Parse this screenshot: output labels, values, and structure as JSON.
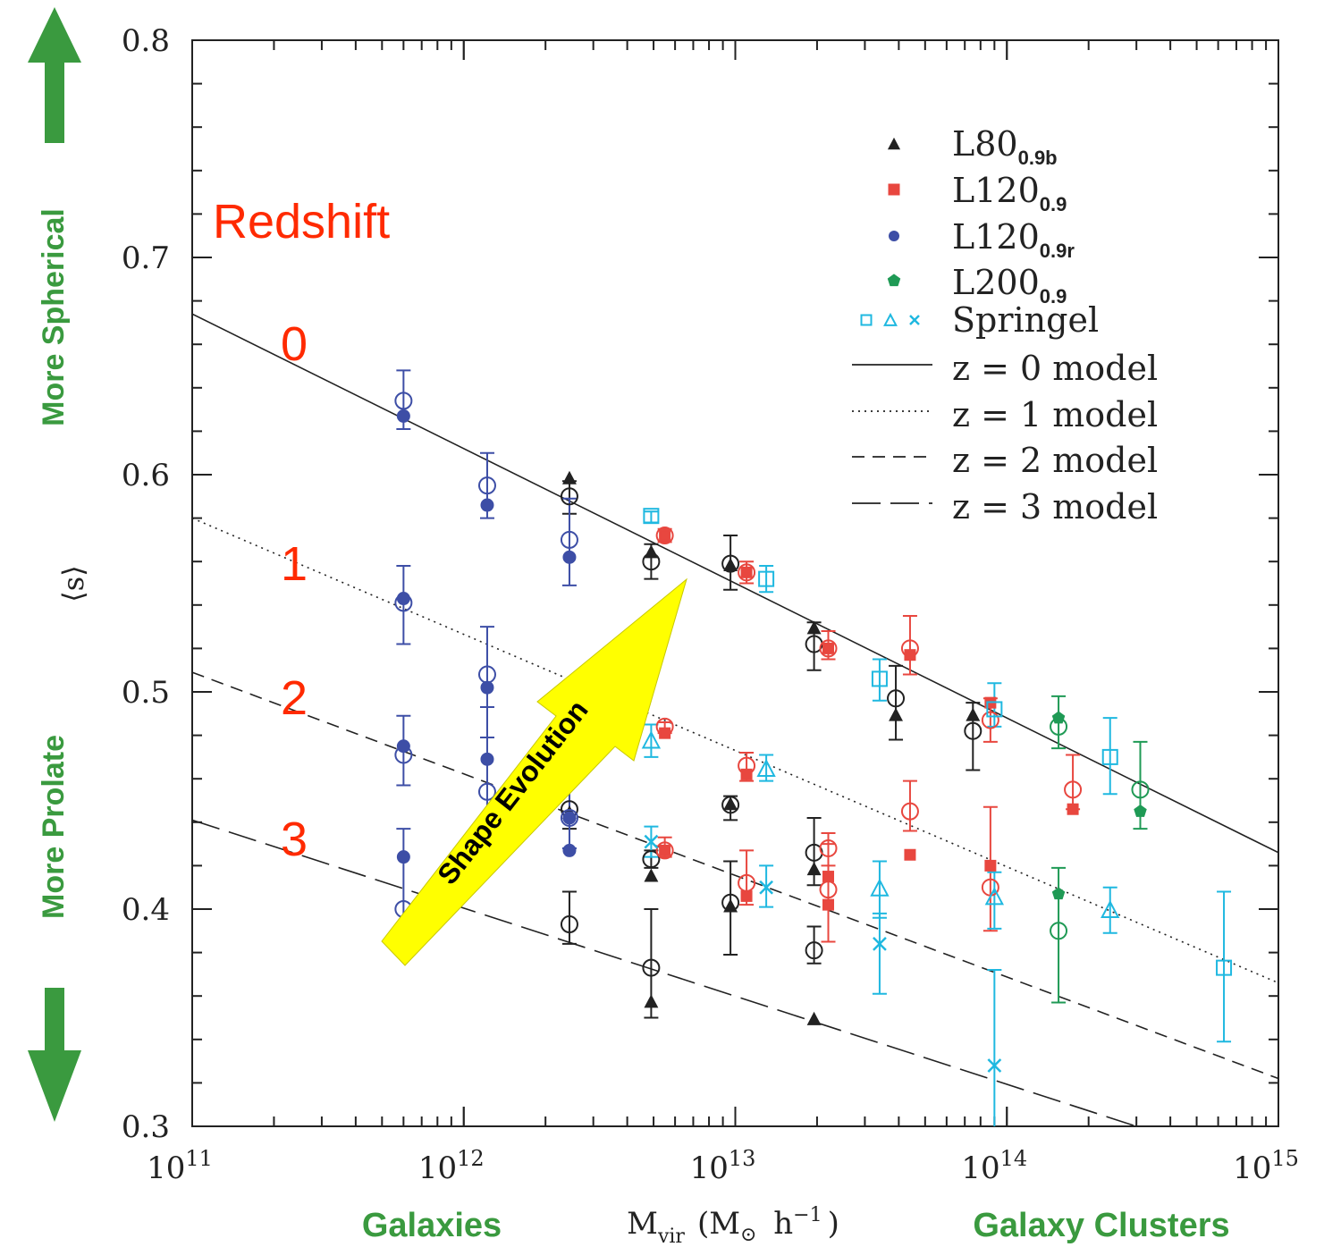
{
  "chart_data": {
    "type": "scatter",
    "xscale": "log",
    "xlim": [
      100000000000.0,
      1000000000000000.0
    ],
    "ylim": [
      0.3,
      0.8
    ],
    "x_ticks": [
      {
        "base": "10",
        "exp": "11"
      },
      {
        "base": "10",
        "exp": "12"
      },
      {
        "base": "10",
        "exp": "13"
      },
      {
        "base": "10",
        "exp": "14"
      },
      {
        "base": "10",
        "exp": "15"
      }
    ],
    "y_ticks": [
      "0.3",
      "0.4",
      "0.5",
      "0.6",
      "0.7",
      "0.8"
    ],
    "ylabel": "⟨s⟩",
    "xlabel": {
      "m": "M",
      "m_sub": "vir",
      "paren": "(M",
      "sun": "⊙",
      "h": " h",
      "h_exp": "−1",
      "close": ")"
    },
    "left_annotations": {
      "top": "More Spherical",
      "bottom": "More Prolate"
    },
    "bottom_annotations": {
      "left": "Galaxies",
      "right": "Galaxy Clusters"
    },
    "redshift_title": "Redshift",
    "redshift_labels": [
      "0",
      "1",
      "2",
      "3"
    ],
    "arrow_label": "Shape Evolution",
    "colors": {
      "L80": "#222222",
      "L120": "#e8473f",
      "L120r": "#3d4ea6",
      "L200": "#1f9a55",
      "Springel": "#1fb8e0",
      "annotation_green": "#3a9a3f",
      "redshift_red": "#ff2a00",
      "arrow_yellow": "#ffff00"
    },
    "legend": [
      {
        "name": "L80",
        "sub": "0.9b",
        "marker": "triangle",
        "color": "#222222"
      },
      {
        "name": "L120",
        "sub": "0.9",
        "marker": "square",
        "color": "#e8473f"
      },
      {
        "name": "L120",
        "sub": "0.9r",
        "marker": "circle",
        "color": "#3d4ea6"
      },
      {
        "name": "L200",
        "sub": "0.9",
        "marker": "pentagon",
        "color": "#1f9a55"
      },
      {
        "name": "Springel",
        "sub": "",
        "marker": "springel",
        "color": "#1fb8e0"
      },
      {
        "name": "z  =  0  model",
        "sub": "",
        "marker": "line",
        "dash": "none"
      },
      {
        "name": "z  =  1  model",
        "sub": "",
        "marker": "line",
        "dash": "2,5"
      },
      {
        "name": "z  =  2  model",
        "sub": "",
        "marker": "line",
        "dash": "14,9"
      },
      {
        "name": "z  =  3  model",
        "sub": "",
        "marker": "line",
        "dash": "32,11"
      }
    ],
    "models": [
      {
        "name": "z = 0 model",
        "x": [
          100000000000.0,
          1000000000000000.0
        ],
        "y": [
          0.674,
          0.426
        ],
        "dash": "none"
      },
      {
        "name": "z = 1 model",
        "x": [
          100000000000.0,
          1000000000000000.0
        ],
        "y": [
          0.58,
          0.366
        ],
        "dash": "2,5"
      },
      {
        "name": "z = 2 model",
        "x": [
          100000000000.0,
          1000000000000000.0
        ],
        "y": [
          0.509,
          0.322
        ],
        "dash": "14,9"
      },
      {
        "name": "z = 3 model",
        "x": [
          100000000000.0,
          300000000000000.0
        ],
        "y": [
          0.441,
          0.3
        ],
        "dash": "32,11"
      }
    ],
    "series": [
      {
        "name": "L80 0.9b",
        "color": "#222222",
        "filled": [
          [
            2450000000000.0,
            0.598
          ],
          [
            4900000000000.0,
            0.564
          ],
          [
            9600000000000.0,
            0.558
          ],
          [
            19500000000000.0,
            0.529
          ],
          [
            39000000000000.0,
            0.489
          ],
          [
            75000000000000.0,
            0.489
          ],
          [
            2450000000000.0,
            0.444
          ],
          [
            9600000000000.0,
            0.448
          ],
          [
            19500000000000.0,
            0.418
          ],
          [
            4900000000000.0,
            0.415
          ],
          [
            9600000000000.0,
            0.401
          ],
          [
            4900000000000.0,
            0.357
          ],
          [
            19500000000000.0,
            0.349
          ]
        ],
        "open": [
          [
            2450000000000.0,
            0.59,
            0.582,
            0.597
          ],
          [
            4900000000000.0,
            0.56,
            0.552,
            0.568
          ],
          [
            9600000000000.0,
            0.559,
            0.547,
            0.572
          ],
          [
            19500000000000.0,
            0.522,
            0.51,
            0.532
          ],
          [
            39000000000000.0,
            0.497,
            0.478,
            0.512
          ],
          [
            75000000000000.0,
            0.482,
            0.464,
            0.495
          ],
          [
            2450000000000.0,
            0.446,
            0.437,
            0.457
          ],
          [
            9600000000000.0,
            0.448,
            0.441,
            0.452
          ],
          [
            19500000000000.0,
            0.426,
            0.411,
            0.442
          ],
          [
            4900000000000.0,
            0.423,
            0.419,
            0.427
          ],
          [
            2450000000000.0,
            0.393,
            0.384,
            0.408
          ],
          [
            9600000000000.0,
            0.403,
            0.379,
            0.422
          ],
          [
            19500000000000.0,
            0.381,
            0.375,
            0.392
          ],
          [
            4900000000000.0,
            0.373,
            0.35,
            0.4
          ]
        ]
      },
      {
        "name": "L120 0.9",
        "color": "#e8473f",
        "filled": [
          [
            5500000000000.0,
            0.572
          ],
          [
            11000000000000.0,
            0.555
          ],
          [
            22000000000000.0,
            0.52
          ],
          [
            44000000000000.0,
            0.517
          ],
          [
            87000000000000.0,
            0.495
          ],
          [
            5500000000000.0,
            0.481
          ],
          [
            11000000000000.0,
            0.462
          ],
          [
            175000000000000.0,
            0.446
          ],
          [
            5500000000000.0,
            0.427
          ],
          [
            22000000000000.0,
            0.415
          ],
          [
            44000000000000.0,
            0.425
          ],
          [
            87000000000000.0,
            0.42
          ],
          [
            11000000000000.0,
            0.406
          ],
          [
            22000000000000.0,
            0.402
          ]
        ],
        "open": [
          [
            5500000000000.0,
            0.572,
            0.569,
            0.575
          ],
          [
            11000000000000.0,
            0.555,
            0.55,
            0.56
          ],
          [
            22000000000000.0,
            0.52,
            0.515,
            0.528
          ],
          [
            44000000000000.0,
            0.52,
            0.508,
            0.535
          ],
          [
            87000000000000.0,
            0.487,
            0.477,
            0.497
          ],
          [
            5500000000000.0,
            0.484,
            0.481,
            0.486
          ],
          [
            11000000000000.0,
            0.466,
            0.459,
            0.472
          ],
          [
            175000000000000.0,
            0.455,
            0.446,
            0.471
          ],
          [
            44000000000000.0,
            0.445,
            0.436,
            0.459
          ],
          [
            5500000000000.0,
            0.427,
            0.424,
            0.433
          ],
          [
            22000000000000.0,
            0.428,
            0.42,
            0.435
          ],
          [
            11000000000000.0,
            0.412,
            0.402,
            0.427
          ],
          [
            22000000000000.0,
            0.409,
            0.385,
            0.43
          ],
          [
            87000000000000.0,
            0.41,
            0.39,
            0.447
          ]
        ]
      },
      {
        "name": "L120 0.9r",
        "color": "#3d4ea6",
        "filled": [
          [
            600000000000.0,
            0.627
          ],
          [
            1220000000000.0,
            0.586
          ],
          [
            2450000000000.0,
            0.562
          ],
          [
            600000000000.0,
            0.543
          ],
          [
            1220000000000.0,
            0.502
          ],
          [
            600000000000.0,
            0.475
          ],
          [
            1220000000000.0,
            0.469
          ],
          [
            2450000000000.0,
            0.442
          ],
          [
            600000000000.0,
            0.424
          ],
          [
            2450000000000.0,
            0.427
          ]
        ],
        "open": [
          [
            600000000000.0,
            0.634,
            0.621,
            0.648
          ],
          [
            1220000000000.0,
            0.595,
            0.58,
            0.61
          ],
          [
            2450000000000.0,
            0.57,
            0.549,
            0.589
          ],
          [
            600000000000.0,
            0.541,
            0.522,
            0.558
          ],
          [
            1220000000000.0,
            0.508,
            0.479,
            0.53
          ],
          [
            600000000000.0,
            0.471,
            0.457,
            0.489
          ],
          [
            1220000000000.0,
            0.454,
            0.426,
            0.493
          ],
          [
            2450000000000.0,
            0.442,
            0.428,
            0.457
          ],
          [
            600000000000.0,
            0.4,
            0.392,
            0.437
          ]
        ]
      },
      {
        "name": "L200 0.9",
        "color": "#1f9a55",
        "filled": [
          [
            155000000000000.0,
            0.488
          ],
          [
            310000000000000.0,
            0.445
          ],
          [
            155000000000000.0,
            0.407
          ]
        ],
        "open": [
          [
            155000000000000.0,
            0.484,
            0.474,
            0.498
          ],
          [
            310000000000000.0,
            0.455,
            0.437,
            0.477
          ],
          [
            155000000000000.0,
            0.39,
            0.357,
            0.419
          ]
        ]
      },
      {
        "name": "Springel",
        "color": "#1fb8e0",
        "squares": [
          [
            4900000000000.0,
            0.581,
            0.578,
            0.583
          ],
          [
            13000000000000.0,
            0.552,
            0.546,
            0.558
          ],
          [
            34000000000000.0,
            0.506,
            0.496,
            0.515
          ],
          [
            90000000000000.0,
            0.492,
            0.484,
            0.504
          ],
          [
            240000000000000.0,
            0.47,
            0.453,
            0.488
          ],
          [
            630000000000000.0,
            0.373,
            0.339,
            0.408
          ]
        ],
        "triangles": [
          [
            4900000000000.0,
            0.478,
            0.47,
            0.485
          ],
          [
            13000000000000.0,
            0.465,
            0.459,
            0.471
          ],
          [
            34000000000000.0,
            0.41,
            0.396,
            0.422
          ],
          [
            90000000000000.0,
            0.406,
            0.391,
            0.417
          ],
          [
            240000000000000.0,
            0.4,
            0.389,
            0.41
          ]
        ],
        "crosses": [
          [
            4900000000000.0,
            0.431,
            0.424,
            0.438
          ],
          [
            13000000000000.0,
            0.41,
            0.401,
            0.42
          ],
          [
            34000000000000.0,
            0.384,
            0.361,
            0.398
          ],
          [
            90000000000000.0,
            0.328,
            0.284,
            0.372
          ]
        ]
      }
    ]
  }
}
